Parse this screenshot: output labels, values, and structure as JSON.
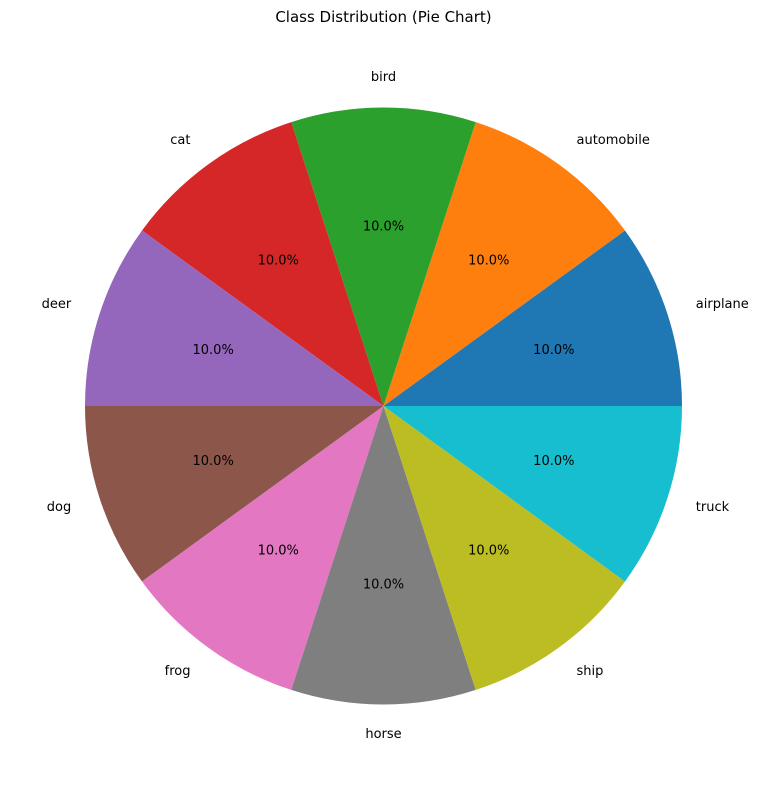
{
  "chart_data": {
    "type": "pie",
    "title": "Class Distribution (Pie Chart)",
    "start_angle_deg": 0,
    "direction": "counterclockwise",
    "autopct_format": "%1.1f%%",
    "slices": [
      {
        "label": "airplane",
        "value": 10.0,
        "pct_label": "10.0%",
        "color": "#1f77b4"
      },
      {
        "label": "automobile",
        "value": 10.0,
        "pct_label": "10.0%",
        "color": "#ff7f0e"
      },
      {
        "label": "bird",
        "value": 10.0,
        "pct_label": "10.0%",
        "color": "#2ca02c"
      },
      {
        "label": "cat",
        "value": 10.0,
        "pct_label": "10.0%",
        "color": "#d62728"
      },
      {
        "label": "deer",
        "value": 10.0,
        "pct_label": "10.0%",
        "color": "#9467bd"
      },
      {
        "label": "dog",
        "value": 10.0,
        "pct_label": "10.0%",
        "color": "#8c564b"
      },
      {
        "label": "frog",
        "value": 10.0,
        "pct_label": "10.0%",
        "color": "#e377c2"
      },
      {
        "label": "horse",
        "value": 10.0,
        "pct_label": "10.0%",
        "color": "#7f7f7f"
      },
      {
        "label": "ship",
        "value": 10.0,
        "pct_label": "10.0%",
        "color": "#bcbd22"
      },
      {
        "label": "truck",
        "value": 10.0,
        "pct_label": "10.0%",
        "color": "#17becf"
      }
    ]
  }
}
